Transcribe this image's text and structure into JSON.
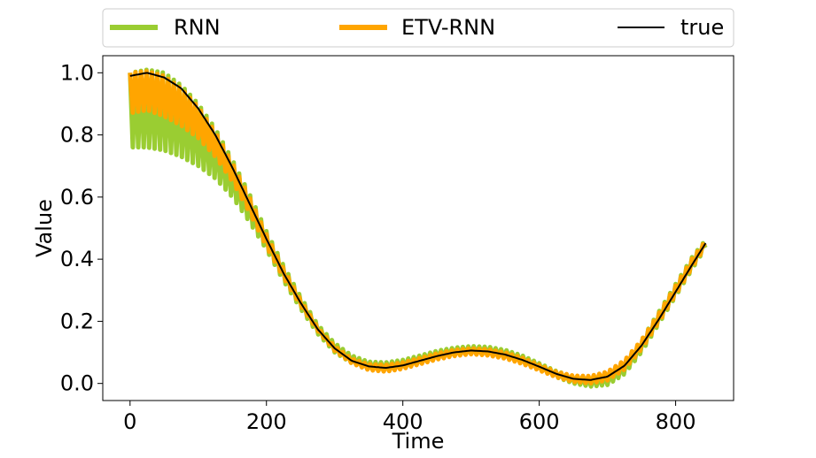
{
  "chart_data": {
    "type": "line",
    "title": "",
    "xlabel": "Time",
    "ylabel": "Value",
    "xlim": [
      -40,
      885
    ],
    "ylim": [
      -0.055,
      1.055
    ],
    "xticks": [
      0,
      200,
      400,
      600,
      800
    ],
    "yticks": [
      0.0,
      0.2,
      0.4,
      0.6,
      0.8,
      1.0
    ],
    "xtick_labels": [
      "0",
      "200",
      "400",
      "600",
      "800"
    ],
    "ytick_labels": [
      "0.0",
      "0.2",
      "0.4",
      "0.6",
      "0.8",
      "1.0"
    ],
    "grid": false,
    "legend_placement": "top, above plot, horizontal",
    "series": [
      {
        "name": "RNN",
        "color": "#9ACD32",
        "style": "oscillating band",
        "x": [
          0,
          25,
          50,
          75,
          100,
          125,
          150,
          175,
          200,
          225,
          250,
          275,
          300,
          325,
          350,
          375,
          400,
          425,
          450,
          475,
          500,
          525,
          550,
          575,
          600,
          625,
          650,
          675,
          700,
          725,
          750,
          775,
          800,
          825,
          845
        ],
        "upper": [
          1.0,
          1.01,
          1.0,
          0.96,
          0.9,
          0.82,
          0.72,
          0.61,
          0.49,
          0.38,
          0.28,
          0.19,
          0.13,
          0.09,
          0.07,
          0.068,
          0.076,
          0.09,
          0.105,
          0.115,
          0.12,
          0.118,
          0.108,
          0.09,
          0.065,
          0.04,
          0.022,
          0.018,
          0.03,
          0.07,
          0.14,
          0.23,
          0.32,
          0.41,
          0.465
        ],
        "lower": [
          0.76,
          0.76,
          0.75,
          0.73,
          0.7,
          0.66,
          0.6,
          0.52,
          0.43,
          0.33,
          0.24,
          0.16,
          0.1,
          0.065,
          0.045,
          0.04,
          0.05,
          0.065,
          0.08,
          0.092,
          0.098,
          0.095,
          0.085,
          0.068,
          0.045,
          0.02,
          0.0,
          -0.01,
          -0.005,
          0.03,
          0.1,
          0.19,
          0.28,
          0.37,
          0.44
        ]
      },
      {
        "name": "ETV-RNN",
        "color": "#FFA500",
        "style": "oscillating band",
        "x": [
          0,
          25,
          50,
          75,
          100,
          125,
          150,
          175,
          200,
          225,
          250,
          275,
          300,
          325,
          350,
          375,
          400,
          425,
          450,
          475,
          500,
          525,
          550,
          575,
          600,
          625,
          650,
          675,
          700,
          725,
          750,
          775,
          800,
          825,
          845
        ],
        "upper": [
          1.0,
          1.005,
          0.99,
          0.95,
          0.89,
          0.81,
          0.71,
          0.6,
          0.48,
          0.37,
          0.27,
          0.18,
          0.12,
          0.08,
          0.062,
          0.06,
          0.068,
          0.082,
          0.097,
          0.108,
          0.113,
          0.11,
          0.1,
          0.083,
          0.06,
          0.038,
          0.025,
          0.024,
          0.038,
          0.075,
          0.14,
          0.225,
          0.315,
          0.405,
          0.462
        ],
        "lower": [
          0.87,
          0.88,
          0.86,
          0.83,
          0.79,
          0.73,
          0.65,
          0.55,
          0.44,
          0.34,
          0.25,
          0.17,
          0.105,
          0.065,
          0.043,
          0.038,
          0.047,
          0.062,
          0.077,
          0.088,
          0.094,
          0.09,
          0.08,
          0.063,
          0.042,
          0.02,
          0.005,
          0.0,
          0.01,
          0.045,
          0.11,
          0.195,
          0.285,
          0.375,
          0.445
        ]
      },
      {
        "name": "true",
        "color": "#000000",
        "style": "line",
        "x": [
          0,
          25,
          50,
          75,
          100,
          125,
          150,
          175,
          200,
          225,
          250,
          275,
          300,
          325,
          350,
          375,
          400,
          425,
          450,
          475,
          500,
          525,
          550,
          575,
          600,
          625,
          650,
          675,
          700,
          725,
          750,
          775,
          800,
          825,
          845
        ],
        "y": [
          0.99,
          1.0,
          0.985,
          0.95,
          0.885,
          0.8,
          0.695,
          0.58,
          0.465,
          0.355,
          0.26,
          0.175,
          0.113,
          0.073,
          0.055,
          0.05,
          0.058,
          0.073,
          0.088,
          0.1,
          0.106,
          0.103,
          0.093,
          0.076,
          0.054,
          0.031,
          0.015,
          0.011,
          0.022,
          0.057,
          0.122,
          0.205,
          0.295,
          0.385,
          0.455
        ]
      }
    ]
  }
}
